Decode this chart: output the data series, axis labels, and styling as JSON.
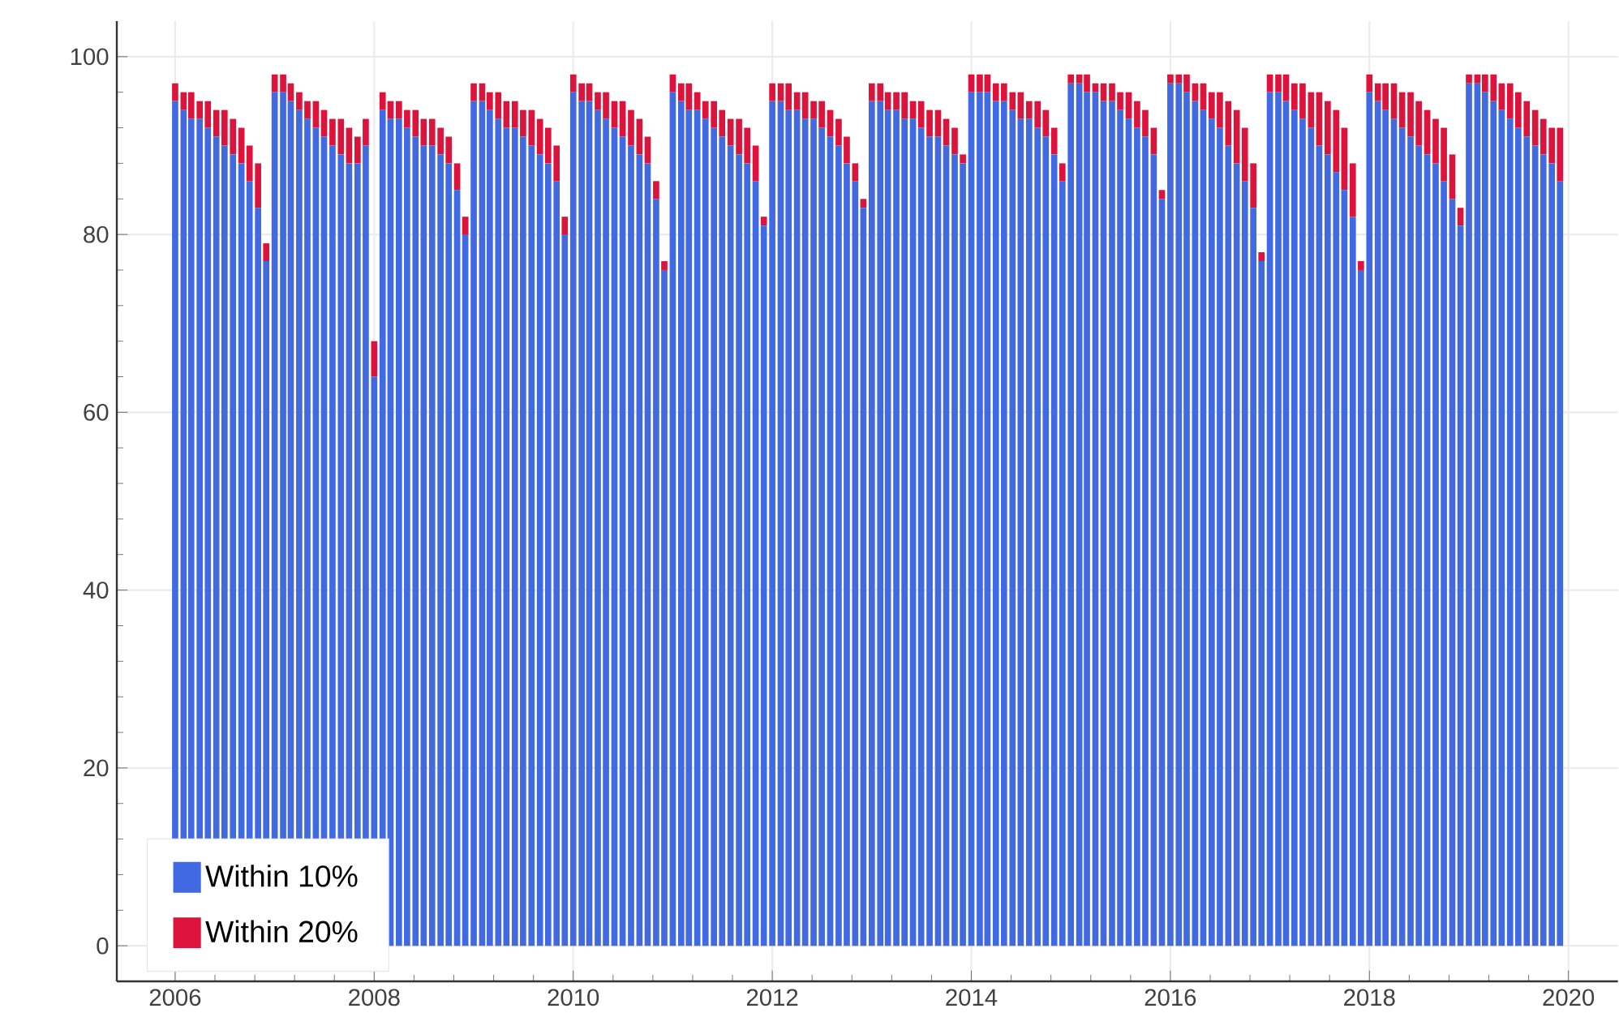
{
  "chart_data": {
    "type": "bar",
    "stacked": true,
    "grid": true,
    "legend": "bottom left",
    "x": [
      "2006-01",
      "2006-02",
      "2006-03",
      "2006-04",
      "2006-05",
      "2006-06",
      "2006-07",
      "2006-08",
      "2006-09",
      "2006-10",
      "2006-11",
      "2006-12",
      "2007-01",
      "2007-02",
      "2007-03",
      "2007-04",
      "2007-05",
      "2007-06",
      "2007-07",
      "2007-08",
      "2007-09",
      "2007-10",
      "2007-11",
      "2007-12",
      "2008-01",
      "2008-02",
      "2008-03",
      "2008-04",
      "2008-05",
      "2008-06",
      "2008-07",
      "2008-08",
      "2008-09",
      "2008-10",
      "2008-11",
      "2008-12",
      "2009-01",
      "2009-02",
      "2009-03",
      "2009-04",
      "2009-05",
      "2009-06",
      "2009-07",
      "2009-08",
      "2009-09",
      "2009-10",
      "2009-11",
      "2009-12",
      "2010-01",
      "2010-02",
      "2010-03",
      "2010-04",
      "2010-05",
      "2010-06",
      "2010-07",
      "2010-08",
      "2010-09",
      "2010-10",
      "2010-11",
      "2010-12",
      "2011-01",
      "2011-02",
      "2011-03",
      "2011-04",
      "2011-05",
      "2011-06",
      "2011-07",
      "2011-08",
      "2011-09",
      "2011-10",
      "2011-11",
      "2011-12",
      "2012-01",
      "2012-02",
      "2012-03",
      "2012-04",
      "2012-05",
      "2012-06",
      "2012-07",
      "2012-08",
      "2012-09",
      "2012-10",
      "2012-11",
      "2012-12",
      "2013-01",
      "2013-02",
      "2013-03",
      "2013-04",
      "2013-05",
      "2013-06",
      "2013-07",
      "2013-08",
      "2013-09",
      "2013-10",
      "2013-11",
      "2013-12",
      "2014-01",
      "2014-02",
      "2014-03",
      "2014-04",
      "2014-05",
      "2014-06",
      "2014-07",
      "2014-08",
      "2014-09",
      "2014-10",
      "2014-11",
      "2014-12",
      "2015-01",
      "2015-02",
      "2015-03",
      "2015-04",
      "2015-05",
      "2015-06",
      "2015-07",
      "2015-08",
      "2015-09",
      "2015-10",
      "2015-11",
      "2015-12",
      "2016-01",
      "2016-02",
      "2016-03",
      "2016-04",
      "2016-05",
      "2016-06",
      "2016-07",
      "2016-08",
      "2016-09",
      "2016-10",
      "2016-11",
      "2016-12",
      "2017-01",
      "2017-02",
      "2017-03",
      "2017-04",
      "2017-05",
      "2017-06",
      "2017-07",
      "2017-08",
      "2017-09",
      "2017-10",
      "2017-11",
      "2017-12",
      "2018-01",
      "2018-02",
      "2018-03",
      "2018-04",
      "2018-05",
      "2018-06",
      "2018-07",
      "2018-08",
      "2018-09",
      "2018-10",
      "2018-11",
      "2018-12",
      "2019-01",
      "2019-02",
      "2019-03",
      "2019-04",
      "2019-05",
      "2019-06",
      "2019-07",
      "2019-08",
      "2019-09",
      "2019-10",
      "2019-11",
      "2019-12"
    ],
    "series": [
      {
        "name": "Within 10%",
        "color": "#4169e1",
        "values": [
          95,
          94,
          93,
          93,
          92,
          91,
          90,
          89,
          88,
          86,
          83,
          77,
          96,
          96,
          95,
          94,
          93,
          92,
          91,
          90,
          89,
          88,
          88,
          90,
          64,
          94,
          93,
          93,
          92,
          91,
          90,
          90,
          89,
          88,
          85,
          80,
          95,
          95,
          94,
          93,
          92,
          92,
          91,
          90,
          89,
          88,
          86,
          80,
          96,
          95,
          95,
          94,
          93,
          92,
          91,
          90,
          89,
          88,
          84,
          76,
          96,
          95,
          94,
          94,
          93,
          92,
          91,
          90,
          89,
          88,
          86,
          81,
          95,
          95,
          94,
          94,
          93,
          93,
          92,
          91,
          90,
          88,
          86,
          83,
          95,
          95,
          94,
          94,
          93,
          93,
          92,
          91,
          91,
          90,
          89,
          88,
          96,
          96,
          96,
          95,
          95,
          94,
          93,
          93,
          92,
          91,
          89,
          86,
          97,
          97,
          96,
          96,
          95,
          95,
          94,
          93,
          92,
          91,
          89,
          84,
          97,
          97,
          96,
          95,
          94,
          93,
          92,
          90,
          88,
          86,
          83,
          77,
          96,
          96,
          95,
          94,
          93,
          92,
          90,
          89,
          87,
          85,
          82,
          76,
          96,
          95,
          94,
          93,
          92,
          91,
          90,
          89,
          88,
          86,
          84,
          81,
          97,
          97,
          96,
          95,
          94,
          93,
          92,
          91,
          90,
          89,
          88,
          86
        ]
      },
      {
        "name": "Within 20%",
        "color": "#dc143c",
        "values": [
          2,
          2,
          3,
          2,
          3,
          3,
          4,
          4,
          4,
          4,
          5,
          2,
          2,
          2,
          2,
          2,
          2,
          3,
          3,
          3,
          4,
          4,
          3,
          3,
          4,
          2,
          2,
          2,
          2,
          3,
          3,
          3,
          3,
          3,
          3,
          2,
          2,
          2,
          2,
          3,
          3,
          3,
          3,
          4,
          4,
          4,
          4,
          2,
          2,
          2,
          2,
          2,
          3,
          3,
          4,
          4,
          4,
          3,
          2,
          1,
          2,
          2,
          3,
          2,
          2,
          3,
          3,
          3,
          4,
          4,
          4,
          1,
          2,
          2,
          3,
          2,
          3,
          2,
          3,
          3,
          3,
          3,
          2,
          1,
          2,
          2,
          2,
          2,
          3,
          2,
          3,
          3,
          3,
          3,
          3,
          1,
          2,
          2,
          2,
          2,
          2,
          2,
          3,
          2,
          3,
          3,
          3,
          2,
          1,
          1,
          2,
          1,
          2,
          2,
          2,
          3,
          3,
          3,
          3,
          1,
          1,
          1,
          2,
          2,
          3,
          3,
          4,
          5,
          6,
          6,
          5,
          1,
          2,
          2,
          3,
          3,
          4,
          4,
          6,
          6,
          7,
          7,
          6,
          1,
          2,
          2,
          3,
          4,
          4,
          5,
          5,
          5,
          5,
          6,
          5,
          2,
          1,
          1,
          2,
          3,
          3,
          4,
          4,
          4,
          4,
          4,
          4,
          6
        ]
      }
    ],
    "xlim": [
      "2005-06",
      "2020-07"
    ],
    "xticks": [
      "2006",
      "2008",
      "2010",
      "2012",
      "2014",
      "2016",
      "2018",
      "2020"
    ],
    "ylim": [
      -4,
      104
    ],
    "yticks": [
      0,
      20,
      40,
      60,
      80,
      100
    ]
  }
}
